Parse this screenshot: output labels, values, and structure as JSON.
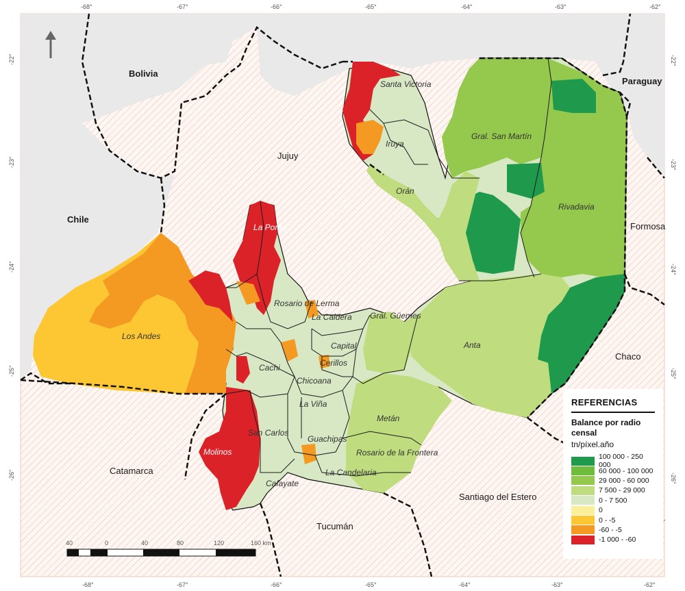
{
  "map": {
    "north_icon": "north-arrow-icon",
    "countries": {
      "bolivia": "Bolivia",
      "paraguay": "Paraguay",
      "chile": "Chile"
    },
    "provinces": {
      "jujuy": "Jujuy",
      "formosa": "Formosa",
      "chaco": "Chaco",
      "catamarca": "Catamarca",
      "tucuman": "Tucumán",
      "santiago": "Santiago del Estero"
    },
    "departments": {
      "santa_victoria": "Santa Victoria",
      "iruya": "Iruya",
      "gral_san_martin": "Gral. San Martín",
      "oran": "Orán",
      "rivadavia": "Rivadavia",
      "la_poma": "La Poma",
      "rosario_de_lerma": "Rosario de Lerma",
      "la_caldera": "La Caldera",
      "gral_guemes": "Gral. Güemes",
      "los_andes": "Los Andes",
      "cachi": "Cachi",
      "capital": "Capital",
      "cerrillos": "Cerillos",
      "chicoana": "Chicoana",
      "anta": "Anta",
      "la_vina": "La Viña",
      "metan": "Metán",
      "san_carlos": "San Carlos",
      "guachipas": "Guachipas",
      "rosario_de_la_frontera": "Rosario de la Frontera",
      "molinos": "Molinos",
      "la_candelaria": "La Candelaria",
      "cafayate": "Cafayate"
    },
    "ticks_top": [
      "-68°",
      "-67°",
      "-66°",
      "-65°",
      "-64°",
      "-63°",
      "-62°"
    ],
    "ticks_bottom": [
      "-68°",
      "-67°",
      "-66°",
      "-65°",
      "-64°",
      "-63°",
      "-62°"
    ],
    "ticks_left": [
      "-22°",
      "-23°",
      "-24°",
      "-25°",
      "-26°"
    ],
    "ticks_right": [
      "-22°",
      "-23°",
      "-24°",
      "-25°",
      "-26°"
    ],
    "scale": {
      "labels": [
        "40",
        "0",
        "40",
        "80",
        "120",
        "160 km"
      ]
    }
  },
  "legend": {
    "title": "REFERENCIAS",
    "subtitle": "Balance por radio censal",
    "unit": "tn/píxel.año",
    "items": [
      {
        "label": "100 000 - 250 000",
        "color": "#1f9a4c"
      },
      {
        "label": "60 000 - 100 000",
        "color": "#6fbb3c"
      },
      {
        "label": "29 000 - 60 000",
        "color": "#95c94d"
      },
      {
        "label": "7 500 - 29 000",
        "color": "#bfdc7f"
      },
      {
        "label": "0 - 7 500",
        "color": "#d8e8c4"
      },
      {
        "label": "0",
        "color": "#fbf09a"
      },
      {
        "label": "0 - -5",
        "color": "#fcc732"
      },
      {
        "label": "-60 - -5",
        "color": "#f49a22"
      },
      {
        "label": "-1 000 - -60",
        "color": "#dc2229"
      }
    ]
  }
}
